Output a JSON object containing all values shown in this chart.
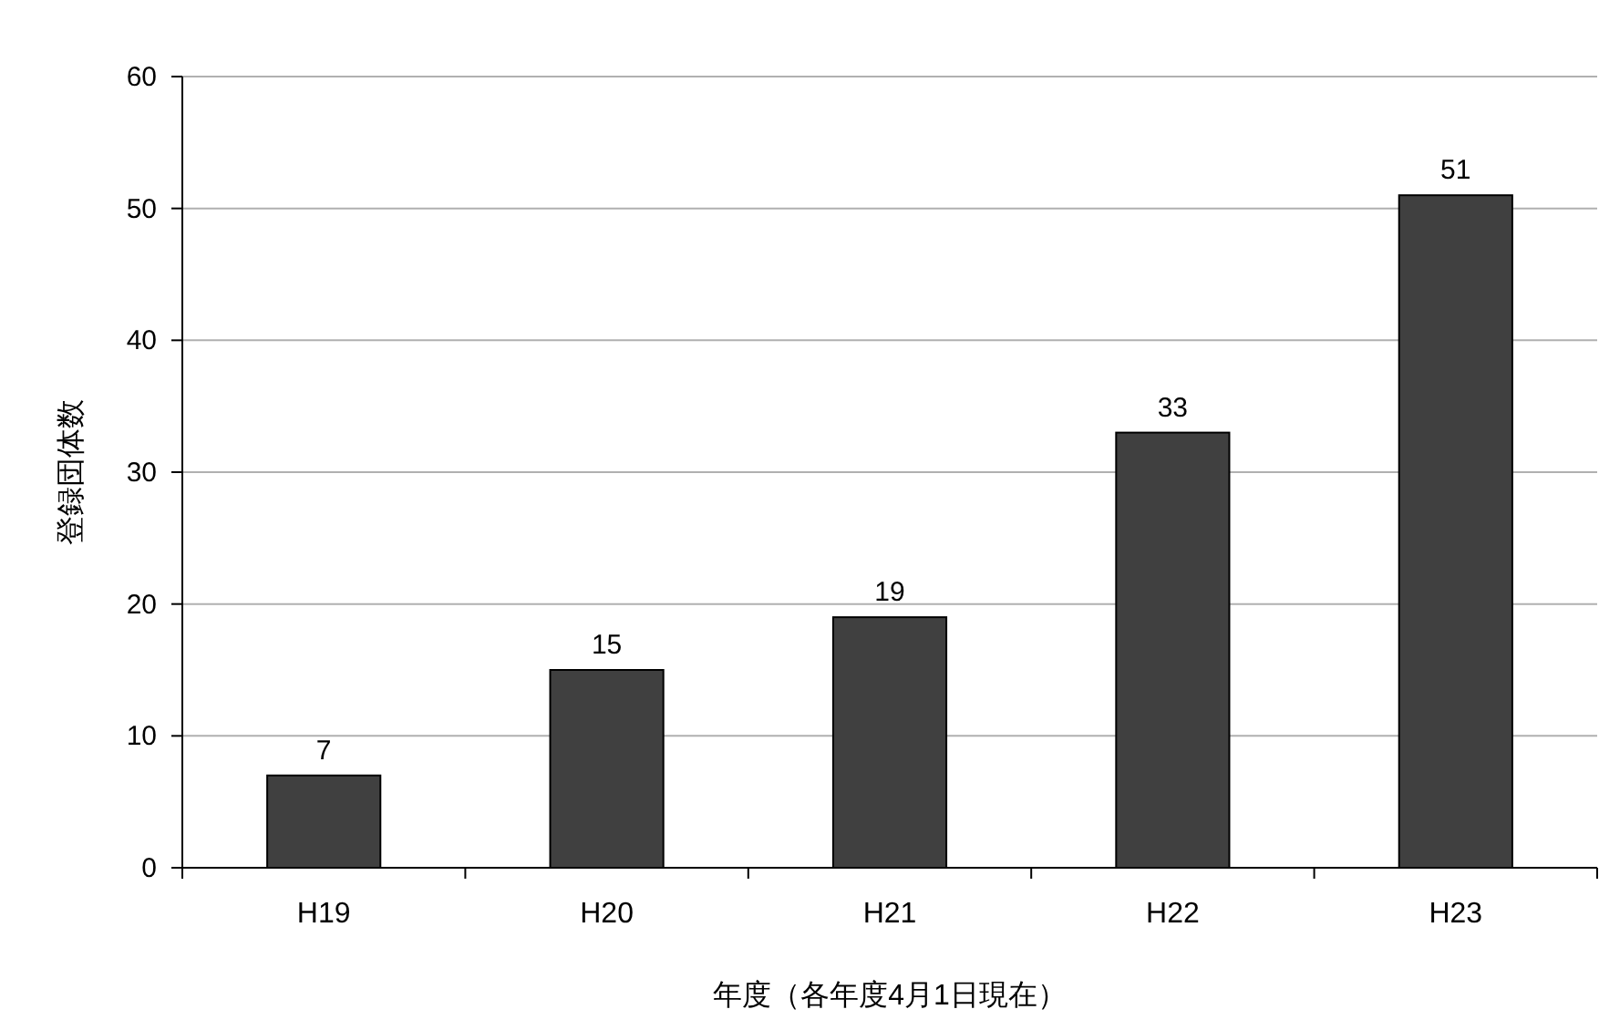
{
  "chart_data": {
    "type": "bar",
    "categories": [
      "H19",
      "H20",
      "H21",
      "H22",
      "H23"
    ],
    "values": [
      7,
      15,
      19,
      33,
      51
    ],
    "color": "#404040",
    "ylim": [
      0,
      60
    ],
    "yticks": [
      0,
      10,
      20,
      30,
      40,
      50,
      60
    ],
    "grid": "y",
    "data_labels": true,
    "xlabel": "年度（各年度4月1日現在）",
    "ylabel": "登録団体数"
  }
}
